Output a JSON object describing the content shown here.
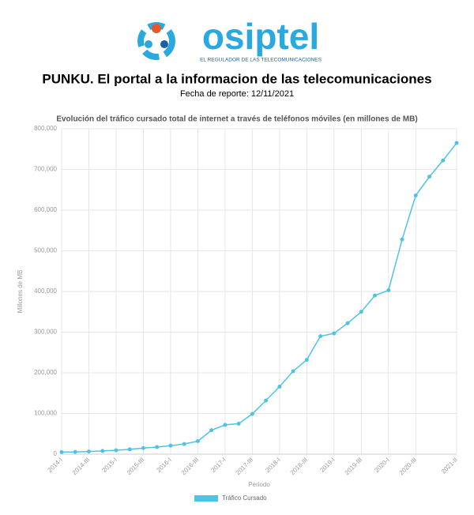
{
  "logo": {
    "name": "osiptel",
    "tagline": "EL REGULADOR DE LAS TELECOMUNICACIONES"
  },
  "header": {
    "title": "PUNKU. El portal a la informacion de las telecomunicaciones",
    "subtitle": "Fecha de reporte: 12/11/2021"
  },
  "chart_data": {
    "type": "line",
    "title": "Evolución del tráfico cursado total de internet a través de teléfonos móviles (en millones de MB)",
    "x_label": "Periodo",
    "y_label": "Millones de MB",
    "categories": [
      "2014-I",
      null,
      "2014-III",
      null,
      "2015-I",
      null,
      "2015-III",
      null,
      "2016-I",
      null,
      "2016-III",
      null,
      "2017-I",
      null,
      "2017-III",
      null,
      "2018-I",
      null,
      "2018-III",
      null,
      "2019-I",
      null,
      "2019-III",
      null,
      "2020-I",
      null,
      "2020-III",
      null,
      null,
      "2021-II"
    ],
    "series": [
      {
        "name": "Tráfico Cursado",
        "color": "#4ec3e6",
        "values": [
          5000,
          5500,
          6500,
          8000,
          9500,
          12000,
          15000,
          17500,
          21000,
          25000,
          32000,
          59000,
          72000,
          75000,
          99000,
          132000,
          166000,
          204000,
          232000,
          290000,
          297000,
          322000,
          350000,
          390000,
          403000,
          528000,
          636000,
          682000,
          722000,
          765000
        ]
      }
    ],
    "ylim": [
      0,
      800000
    ],
    "yticks": [
      0,
      {
        "value": 100000,
        "label": "100,000"
      },
      {
        "value": 200000,
        "label": "200,000"
      },
      {
        "value": 300000,
        "label": "300,000"
      },
      {
        "value": 400000,
        "label": "400,000"
      },
      {
        "value": 500000,
        "label": "500,000"
      },
      {
        "value": 600000,
        "label": "600,000"
      },
      {
        "value": 700000,
        "label": "700,000"
      },
      {
        "value": 800000,
        "label": "800,000"
      }
    ],
    "grid": true
  }
}
